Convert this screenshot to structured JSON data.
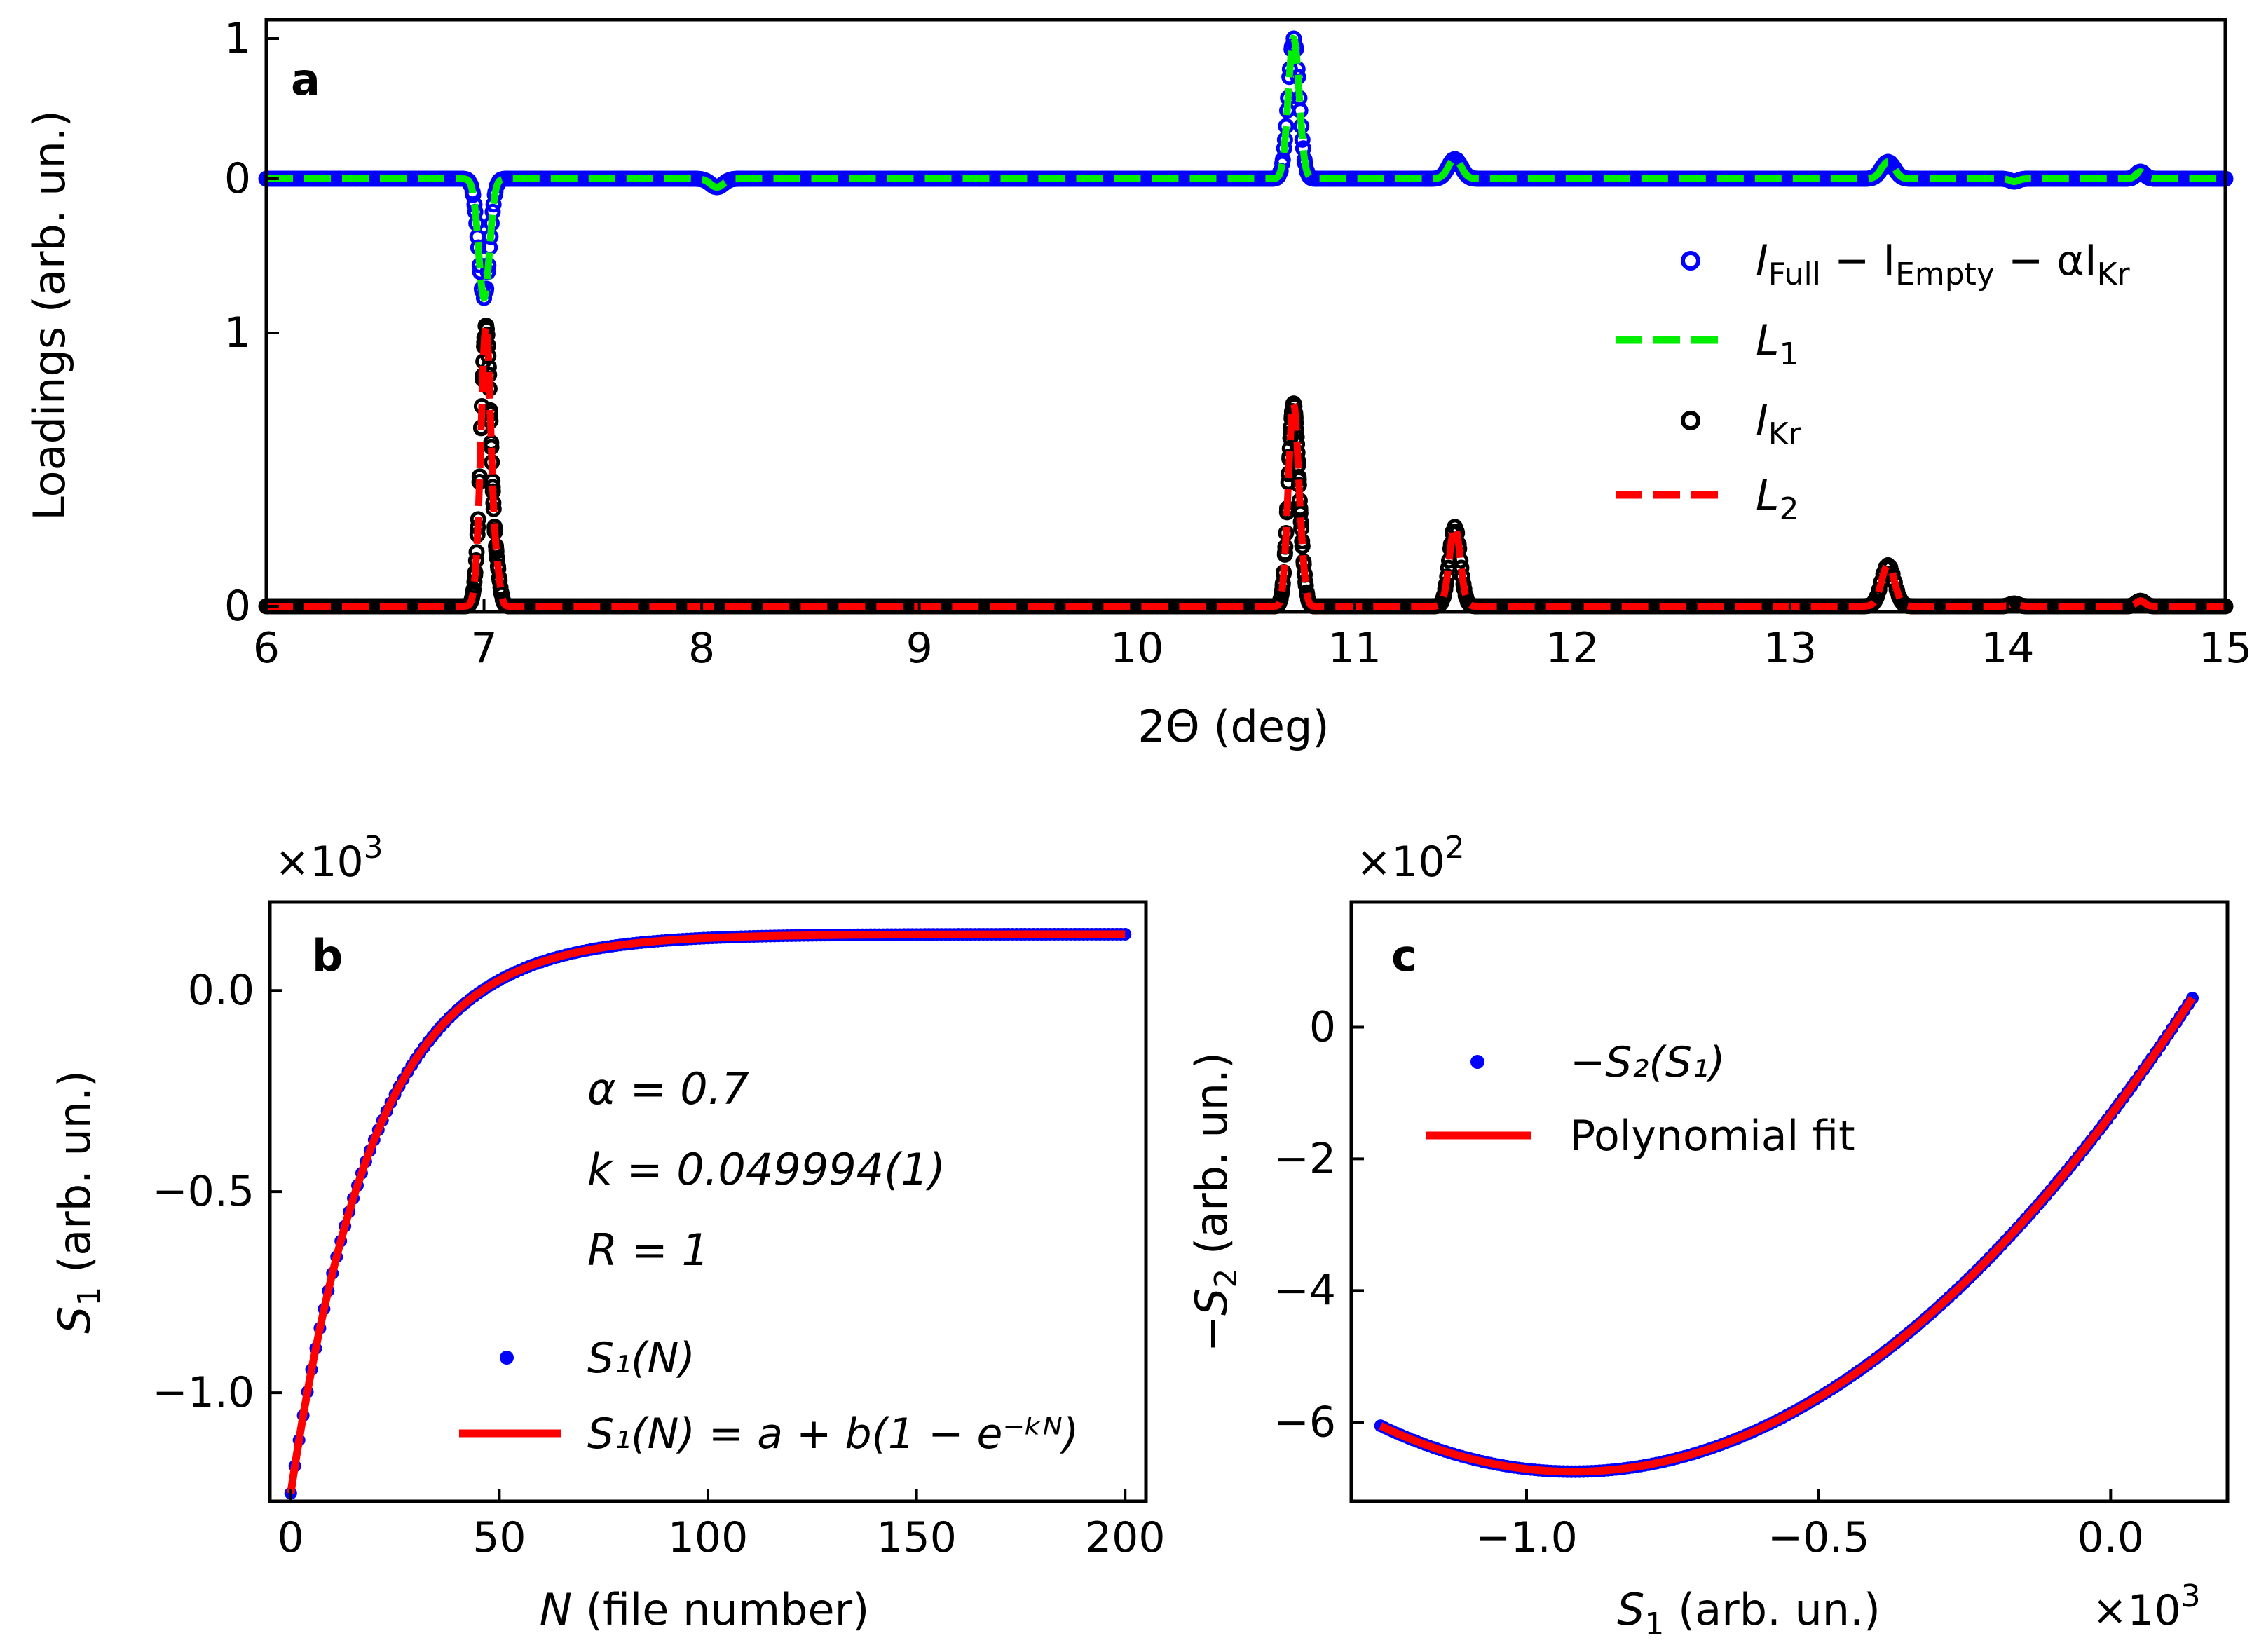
{
  "figure": {
    "colors": {
      "blue": "#0000ff",
      "green": "#00ee00",
      "black": "#000000",
      "red": "#ff0000"
    }
  },
  "chart_data": [
    {
      "panel": "a",
      "type": "line",
      "title": "",
      "xlabel": "2Θ (deg)",
      "ylabel": "Loadings (arb. un.)",
      "xlim": [
        6,
        15
      ],
      "xticks": [
        "6",
        "7",
        "8",
        "9",
        "10",
        "11",
        "12",
        "13",
        "14",
        "15"
      ],
      "yticks_top": [
        "1",
        "0"
      ],
      "yticks_bottom": [
        "1",
        "0"
      ],
      "grid": false,
      "legend_position": "right",
      "peaks_top": [
        {
          "x": 7.0,
          "height": -0.85,
          "width": 0.025
        },
        {
          "x": 8.07,
          "height": -0.06,
          "width": 0.03
        },
        {
          "x": 10.72,
          "height": 1.0,
          "width": 0.025
        },
        {
          "x": 11.46,
          "height": 0.14,
          "width": 0.03
        },
        {
          "x": 13.45,
          "height": 0.12,
          "width": 0.03
        },
        {
          "x": 14.03,
          "height": -0.02,
          "width": 0.02
        },
        {
          "x": 14.61,
          "height": 0.05,
          "width": 0.02
        }
      ],
      "peaks_bottom": [
        {
          "x": 6.98,
          "height": 0.08,
          "width": 0.02
        },
        {
          "x": 7.01,
          "height": 1.0,
          "width": 0.022
        },
        {
          "x": 7.06,
          "height": 0.1,
          "width": 0.015
        },
        {
          "x": 10.69,
          "height": 0.07,
          "width": 0.015
        },
        {
          "x": 10.72,
          "height": 0.73,
          "width": 0.022
        },
        {
          "x": 10.76,
          "height": 0.08,
          "width": 0.015
        },
        {
          "x": 11.46,
          "height": 0.29,
          "width": 0.025
        },
        {
          "x": 13.45,
          "height": 0.15,
          "width": 0.03
        },
        {
          "x": 14.03,
          "height": 0.01,
          "width": 0.02
        },
        {
          "x": 14.61,
          "height": 0.02,
          "width": 0.02
        }
      ],
      "legend": [
        {
          "main": "I",
          "sub": "Full",
          "rest": " − I",
          "sub2": "Empty",
          "rest2": " − αI",
          "sub3": "Kr"
        },
        {
          "main": "L",
          "sub": "1"
        },
        {
          "main": "I",
          "sub": "Kr"
        },
        {
          "main": "L",
          "sub": "2"
        }
      ],
      "series": [
        {
          "name": "I_Full − I_Empty − αI_Kr",
          "style": "open-circles",
          "color": "blue"
        },
        {
          "name": "L_1",
          "style": "dashed",
          "color": "green"
        },
        {
          "name": "I_Kr",
          "style": "open-circles",
          "color": "black"
        },
        {
          "name": "L_2",
          "style": "dashed",
          "color": "red"
        }
      ],
      "letter": "a"
    },
    {
      "panel": "b",
      "type": "scatter",
      "xlabel_italic": "N",
      "xlabel_rest": " (file number)",
      "ylabel_main": "S",
      "ylabel_sub": "1",
      "ylabel_rest": " (arb. un.)",
      "xlim": [
        -5,
        205
      ],
      "ylim": [
        -1.27,
        0.22
      ],
      "xticks": [
        0,
        50,
        100,
        150,
        200
      ],
      "xtick_labels": [
        "0",
        "50",
        "100",
        "150",
        "200"
      ],
      "yticks": [
        0.0,
        -0.5,
        -1.0
      ],
      "ytick_labels": [
        "0.0",
        "−0.5",
        "−1.0"
      ],
      "multiplier": "×10",
      "multiplier_exp": "3",
      "model": {
        "a": -1.25,
        "b": 1.39,
        "k": 0.049994,
        "n_min": 0,
        "n_max": 200
      },
      "annotations": [
        "α = 0.7",
        "k = 0.049994(1)",
        "R = 1"
      ],
      "legend": [
        {
          "label": "S₁(N)",
          "style": "dots",
          "color": "blue"
        },
        {
          "label": "S₁(N) = a + b(1 − e⁻ᵏᴺ)",
          "style": "solid",
          "color": "red"
        }
      ],
      "letter": "b"
    },
    {
      "panel": "c",
      "type": "scatter",
      "xlabel_main": "S",
      "xlabel_sub": "1",
      "xlabel_rest": " (arb. un.)",
      "ylabel": "−S₂ (arb. un.)",
      "ylabel_main": "−S",
      "ylabel_sub": "2",
      "ylabel_rest": " (arb. un.)",
      "xlim": [
        -1.3,
        0.2
      ],
      "ylim": [
        -7.2,
        1.9
      ],
      "xticks": [
        -1.0,
        -0.5,
        0.0
      ],
      "xtick_labels": [
        "−1.0",
        "−0.5",
        "0.0"
      ],
      "yticks": [
        0,
        -2,
        -4,
        -6
      ],
      "ytick_labels": [
        "0",
        "−2",
        "−4",
        "−6"
      ],
      "x_multiplier": "×10",
      "x_multiplier_exp": "3",
      "y_multiplier": "×10",
      "y_multiplier_exp": "2",
      "curve": {
        "vertex_x": -0.92,
        "vertex_y": -6.75,
        "coef": 6.4,
        "x_min": -1.25,
        "x_max": 0.14
      },
      "legend": [
        {
          "label": "−S₂(S₁)",
          "style": "dots",
          "color": "blue"
        },
        {
          "label": "Polynomial fit",
          "style": "solid",
          "color": "red"
        }
      ],
      "letter": "c"
    }
  ]
}
